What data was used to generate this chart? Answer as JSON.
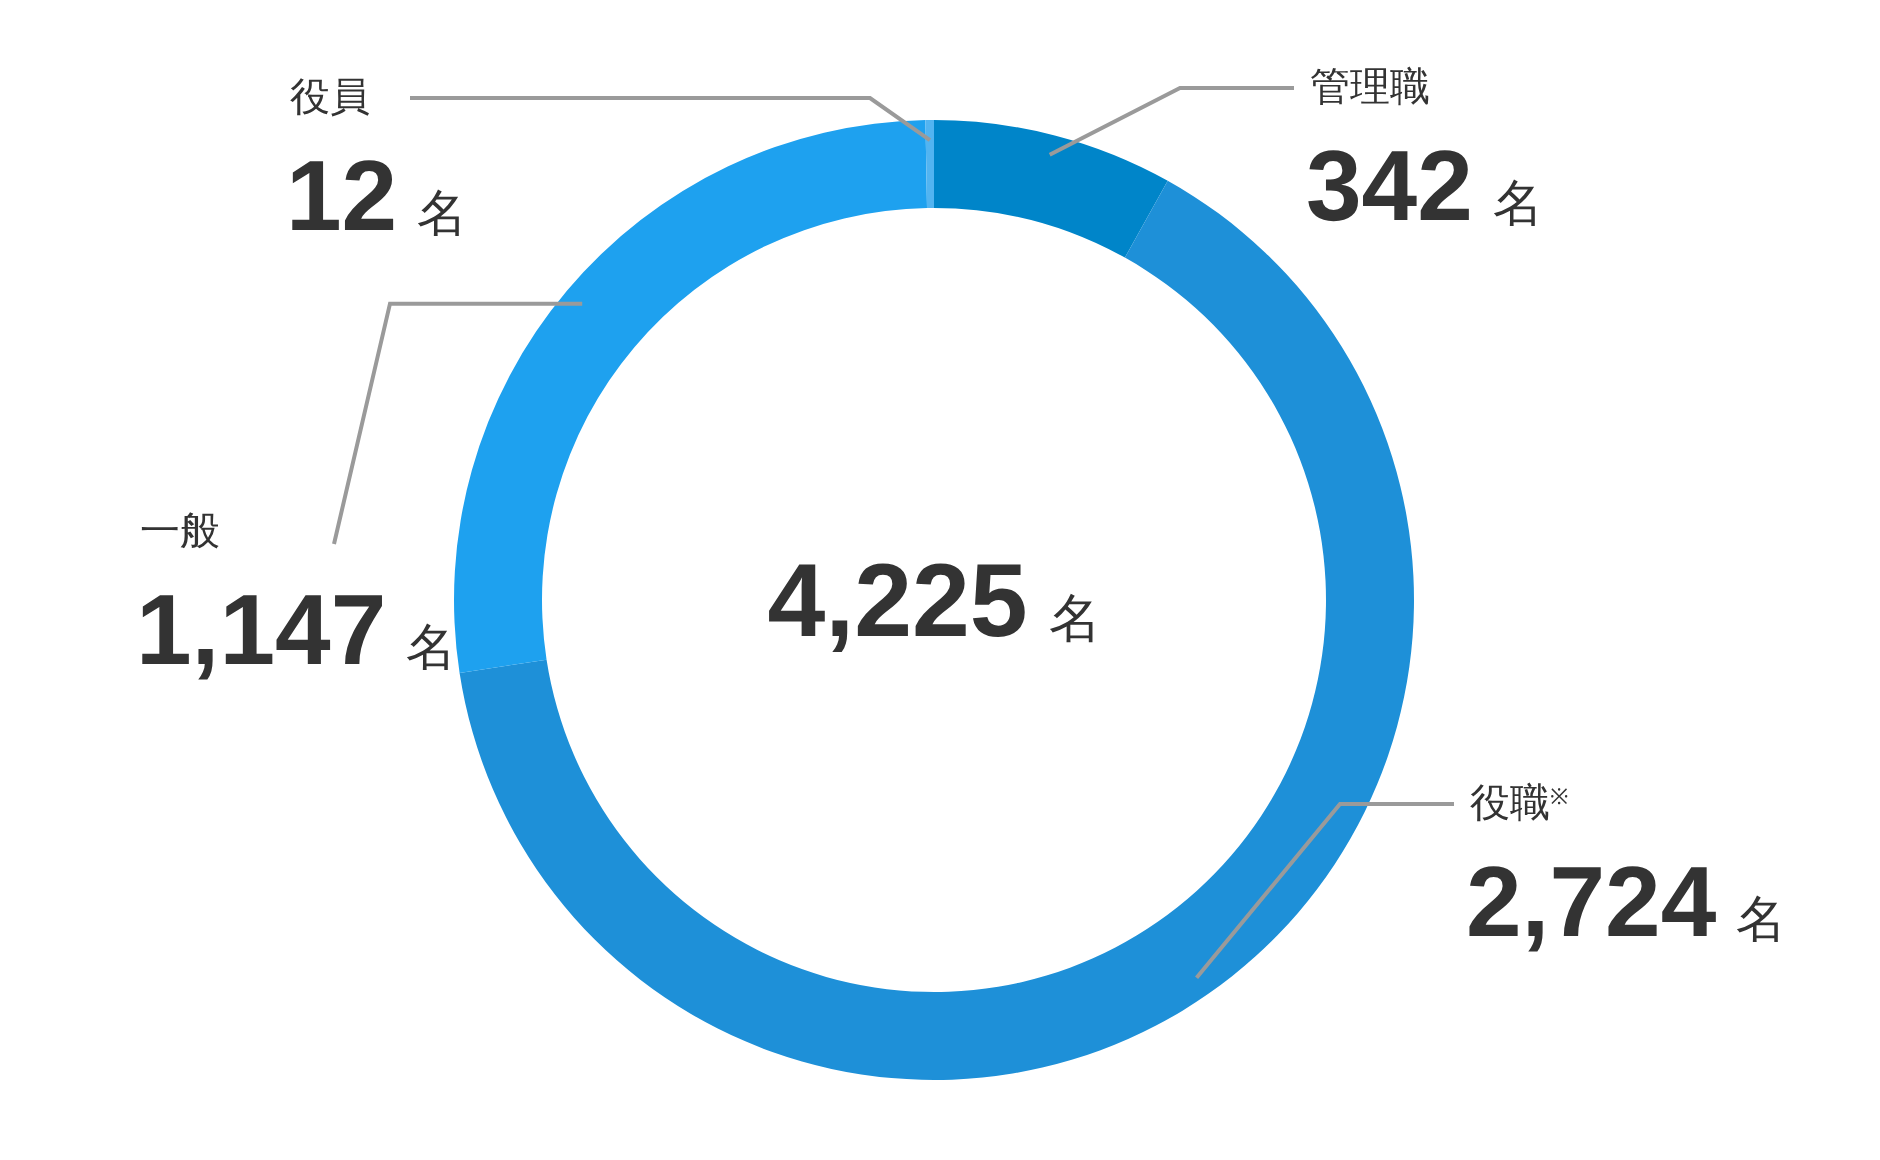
{
  "chart_data": {
    "type": "donut",
    "categories": [
      "管理職",
      "役職$^{※}$",
      "一般",
      "役員"
    ],
    "values": [
      342,
      2724,
      1147,
      12
    ],
    "colors": [
      "#0085c9",
      "#1e90d8",
      "#1ea1ef",
      "#52b4f1"
    ],
    "value_labels": [
      "342 名",
      "2,724 名",
      "1,147 名",
      "12 名"
    ],
    "annotations": [
      "4,225 名"
    ]
  }
}
